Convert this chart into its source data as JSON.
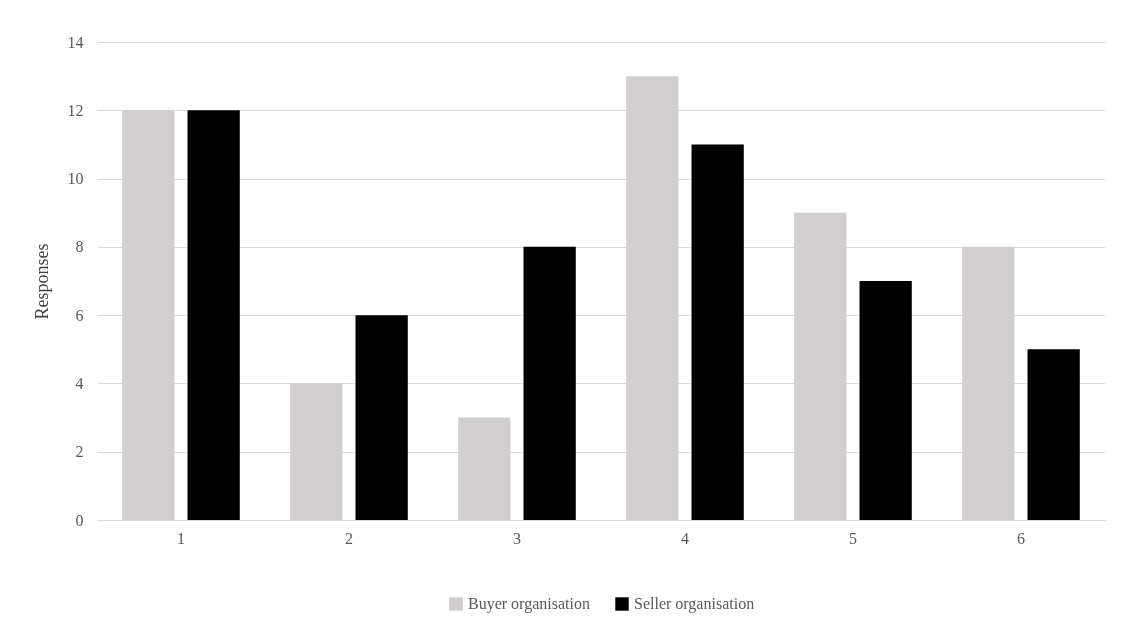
{
  "chart_data": {
    "type": "bar",
    "ylabel": "Responses",
    "categories": [
      "1",
      "2",
      "3",
      "4",
      "5",
      "6"
    ],
    "series": [
      {
        "name": "Buyer organisation",
        "color": "#d0cece",
        "values": [
          12,
          4,
          3,
          13,
          9,
          8
        ]
      },
      {
        "name": "Seller organisation",
        "color": "#000000",
        "values": [
          12,
          6,
          8,
          11,
          7,
          5
        ]
      }
    ],
    "ylim": [
      0,
      14
    ],
    "yticks": [
      0,
      2,
      4,
      6,
      8,
      10,
      12,
      14
    ],
    "grid": "y",
    "legend": "bottom"
  }
}
